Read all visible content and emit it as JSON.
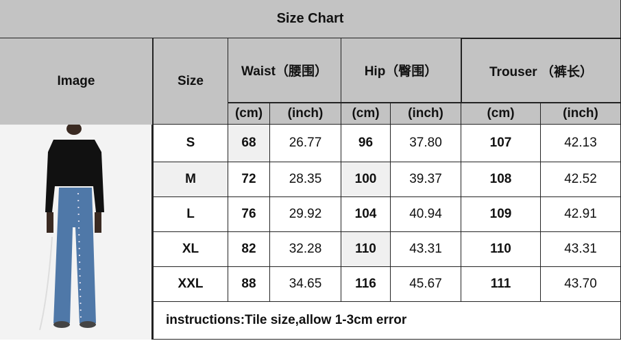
{
  "title": "Size Chart",
  "headers": {
    "image": "Image",
    "size": "Size",
    "waist": "Waist（腰围）",
    "hip": "Hip（臀围）",
    "trouser": "Trouser （裤长）",
    "cm": "(cm)",
    "inch": "(inch)"
  },
  "rows": [
    {
      "size": "S",
      "waist_cm": "68",
      "waist_in": "26.77",
      "hip_cm": "96",
      "hip_in": "37.80",
      "trouser_cm": "107",
      "trouser_in": "42.13"
    },
    {
      "size": "M",
      "waist_cm": "72",
      "waist_in": "28.35",
      "hip_cm": "100",
      "hip_in": "39.37",
      "trouser_cm": "108",
      "trouser_in": "42.52"
    },
    {
      "size": "L",
      "waist_cm": "76",
      "waist_in": "29.92",
      "hip_cm": "104",
      "hip_in": "40.94",
      "trouser_cm": "109",
      "trouser_in": "42.91"
    },
    {
      "size": "XL",
      "waist_cm": "82",
      "waist_in": "32.28",
      "hip_cm": "110",
      "hip_in": "43.31",
      "trouser_cm": "110",
      "trouser_in": "43.31"
    },
    {
      "size": "XXL",
      "waist_cm": "88",
      "waist_in": "34.65",
      "hip_cm": "116",
      "hip_in": "45.67",
      "trouser_cm": "111",
      "trouser_in": "43.70"
    }
  ],
  "instructions": "instructions:Tile size,allow 1-3cm error"
}
